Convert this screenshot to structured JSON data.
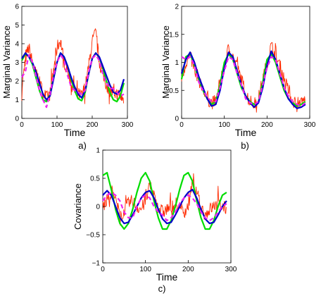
{
  "chart_data": [
    {
      "type": "line",
      "panel_label": "a)",
      "xlabel": "Time",
      "ylabel": "Marginal Variance",
      "xlim": [
        0,
        300
      ],
      "ylim": [
        0,
        6
      ],
      "xticks": [
        0,
        100,
        200,
        300
      ],
      "yticks": [
        0,
        1,
        2,
        3,
        4,
        5,
        6
      ],
      "xtick_labels": [
        "0",
        "100",
        "200",
        "300"
      ],
      "ytick_labels": [
        "0",
        "1",
        "2",
        "3",
        "4",
        "5",
        "6"
      ],
      "grid": false,
      "series": [
        {
          "color": "#ff2a00",
          "style": "noisy",
          "x": [
            0,
            10,
            20,
            30,
            40,
            50,
            60,
            70,
            80,
            90,
            100,
            110,
            120,
            130,
            140,
            150,
            160,
            170,
            180,
            190,
            200,
            210,
            220,
            230,
            240,
            250,
            260,
            270,
            280,
            290
          ],
          "y": [
            1.6,
            3.2,
            3.8,
            3.0,
            2.6,
            1.9,
            1.4,
            1.1,
            1.3,
            2.4,
            3.8,
            4.2,
            3.0,
            2.7,
            1.9,
            1.5,
            1.3,
            1.2,
            1.7,
            2.8,
            4.1,
            4.6,
            3.0,
            2.4,
            1.8,
            1.5,
            1.4,
            1.3,
            1.2,
            1.0
          ]
        },
        {
          "color": "#00dd00",
          "style": "smooth",
          "x": [
            0,
            10,
            20,
            30,
            40,
            50,
            60,
            70,
            80,
            90,
            100,
            110,
            120,
            130,
            140,
            150,
            160,
            170,
            180,
            190,
            200,
            210,
            220,
            230,
            240,
            250,
            260,
            270,
            280,
            290
          ],
          "y": [
            3.1,
            3.45,
            3.3,
            2.9,
            2.2,
            1.5,
            1.0,
            0.9,
            1.3,
            2.2,
            3.0,
            3.5,
            3.3,
            2.8,
            2.1,
            1.5,
            1.05,
            0.95,
            1.4,
            2.4,
            3.2,
            3.5,
            3.25,
            2.7,
            2.0,
            1.4,
            1.0,
            0.9,
            1.2,
            1.9
          ]
        },
        {
          "color": "#0000cc",
          "style": "smooth",
          "x": [
            0,
            10,
            20,
            30,
            40,
            50,
            60,
            70,
            80,
            90,
            100,
            110,
            120,
            130,
            140,
            150,
            160,
            170,
            180,
            190,
            200,
            210,
            220,
            230,
            240,
            250,
            260,
            270,
            280,
            290
          ],
          "y": [
            3.2,
            3.5,
            3.3,
            3.0,
            2.5,
            1.9,
            1.3,
            1.0,
            1.2,
            2.1,
            3.0,
            3.5,
            3.3,
            2.8,
            2.2,
            1.7,
            1.3,
            1.1,
            1.5,
            2.4,
            3.2,
            3.5,
            3.3,
            2.8,
            2.3,
            1.8,
            1.4,
            1.3,
            1.5,
            2.1
          ]
        },
        {
          "color": "#ee22ee",
          "style": "dashed",
          "x": [
            0,
            10,
            20,
            30,
            40,
            50,
            60,
            70,
            80,
            90,
            100,
            110,
            120,
            130,
            140,
            150,
            160,
            170,
            180,
            190,
            200,
            210,
            220,
            230,
            240,
            250,
            260,
            270,
            280,
            290
          ],
          "y": [
            2.2,
            2.5,
            3.4,
            3.0,
            2.3,
            1.5,
            1.0,
            0.6,
            1.3,
            2.3,
            3.0,
            3.4,
            3.1,
            2.3,
            1.7,
            1.5,
            1.4,
            1.3,
            1.5,
            2.5,
            3.2,
            3.4,
            3.1,
            2.4,
            1.9,
            1.6,
            1.6,
            1.4,
            1.2,
            1.3
          ]
        }
      ]
    },
    {
      "type": "line",
      "panel_label": "b)",
      "xlabel": "Time",
      "ylabel": "Marginal Variance",
      "xlim": [
        0,
        300
      ],
      "ylim": [
        0,
        2
      ],
      "xticks": [
        0,
        100,
        200,
        300
      ],
      "yticks": [
        0,
        0.5,
        1,
        1.5,
        2
      ],
      "xtick_labels": [
        "0",
        "100",
        "200",
        "300"
      ],
      "ytick_labels": [
        "0",
        "0.5",
        "1",
        "1.5",
        "2"
      ],
      "grid": false,
      "series": [
        {
          "color": "#ff2a00",
          "style": "noisy",
          "x": [
            0,
            10,
            20,
            30,
            40,
            50,
            60,
            70,
            80,
            90,
            100,
            110,
            120,
            130,
            140,
            150,
            160,
            170,
            180,
            190,
            200,
            210,
            220,
            230,
            240,
            250,
            260,
            270,
            280,
            290
          ],
          "y": [
            0.7,
            1.0,
            1.1,
            0.9,
            0.7,
            0.5,
            0.35,
            0.28,
            0.3,
            0.6,
            0.95,
            1.25,
            1.1,
            0.9,
            0.7,
            0.45,
            0.3,
            0.25,
            0.35,
            0.7,
            1.0,
            1.3,
            1.1,
            0.95,
            0.7,
            0.5,
            0.3,
            0.3,
            0.28,
            0.35
          ]
        },
        {
          "color": "#00dd00",
          "style": "smooth",
          "x": [
            0,
            10,
            20,
            30,
            40,
            50,
            60,
            70,
            80,
            90,
            100,
            110,
            120,
            130,
            140,
            150,
            160,
            170,
            180,
            190,
            200,
            210,
            220,
            230,
            240,
            250,
            260,
            270,
            280,
            290
          ],
          "y": [
            0.7,
            1.1,
            1.15,
            0.95,
            0.7,
            0.5,
            0.35,
            0.25,
            0.3,
            0.6,
            1.0,
            1.15,
            1.05,
            0.8,
            0.55,
            0.4,
            0.3,
            0.25,
            0.3,
            0.65,
            1.05,
            1.15,
            1.0,
            0.75,
            0.5,
            0.35,
            0.28,
            0.22,
            0.25,
            0.3
          ]
        },
        {
          "color": "#0000cc",
          "style": "smooth",
          "x": [
            0,
            10,
            20,
            30,
            40,
            50,
            60,
            70,
            80,
            90,
            100,
            110,
            120,
            130,
            140,
            150,
            160,
            170,
            180,
            190,
            200,
            210,
            220,
            230,
            240,
            250,
            260,
            270,
            280,
            290
          ],
          "y": [
            0.8,
            1.05,
            1.18,
            1.0,
            0.75,
            0.55,
            0.35,
            0.22,
            0.25,
            0.5,
            0.9,
            1.18,
            1.1,
            0.85,
            0.6,
            0.4,
            0.28,
            0.2,
            0.28,
            0.55,
            0.95,
            1.2,
            1.05,
            0.8,
            0.55,
            0.35,
            0.25,
            0.18,
            0.2,
            0.25
          ]
        },
        {
          "color": "#ee22ee",
          "style": "dashed",
          "x": [
            0,
            10,
            20,
            30,
            40,
            50,
            60,
            70,
            80,
            90,
            100,
            110,
            120,
            130,
            140,
            150,
            160,
            170,
            180,
            190,
            200,
            210,
            220,
            230,
            240,
            250,
            260,
            270,
            280,
            290
          ],
          "y": [
            1.1,
            1.05,
            1.1,
            0.95,
            0.65,
            0.5,
            0.38,
            0.3,
            0.3,
            0.55,
            0.85,
            1.1,
            1.05,
            0.8,
            0.6,
            0.35,
            0.28,
            0.25,
            0.3,
            0.6,
            0.9,
            1.1,
            1.05,
            0.8,
            0.55,
            0.4,
            0.3,
            0.25,
            0.22,
            0.28
          ]
        }
      ]
    },
    {
      "type": "line",
      "panel_label": "c)",
      "xlabel": "Time",
      "ylabel": "Covariance",
      "xlim": [
        0,
        300
      ],
      "ylim": [
        -1,
        1
      ],
      "xticks": [
        0,
        100,
        200,
        300
      ],
      "yticks": [
        -1,
        -0.5,
        0,
        0.5,
        1
      ],
      "xtick_labels": [
        "0",
        "100",
        "200",
        "300"
      ],
      "ytick_labels": [
        "−1",
        "−0.5",
        "0",
        "0.5",
        "1"
      ],
      "grid": false,
      "series": [
        {
          "color": "#ff2a00",
          "style": "noisy",
          "x": [
            0,
            10,
            20,
            30,
            40,
            50,
            60,
            70,
            80,
            90,
            100,
            110,
            120,
            130,
            140,
            150,
            160,
            170,
            180,
            190,
            200,
            210,
            220,
            230,
            240,
            250,
            260,
            270,
            280,
            290
          ],
          "y": [
            0.0,
            0.1,
            0.3,
            0.1,
            -0.15,
            -0.1,
            0.05,
            0.1,
            0.0,
            -0.05,
            0.1,
            0.35,
            0.2,
            0.0,
            -0.1,
            -0.05,
            0.0,
            0.05,
            0.0,
            -0.1,
            0.0,
            0.4,
            0.2,
            0.0,
            -0.15,
            -0.05,
            0.0,
            0.05,
            0.0,
            -0.05
          ]
        },
        {
          "color": "#00dd00",
          "style": "smooth",
          "x": [
            0,
            10,
            20,
            30,
            40,
            50,
            60,
            70,
            80,
            90,
            100,
            110,
            120,
            130,
            140,
            150,
            160,
            170,
            180,
            190,
            200,
            210,
            220,
            230,
            240,
            250,
            260,
            270,
            280,
            290
          ],
          "y": [
            0.55,
            0.6,
            0.3,
            -0.05,
            -0.3,
            -0.4,
            -0.3,
            -0.05,
            0.25,
            0.5,
            0.6,
            0.45,
            0.1,
            -0.2,
            -0.4,
            -0.4,
            -0.25,
            0.0,
            0.3,
            0.55,
            0.6,
            0.45,
            0.1,
            -0.2,
            -0.4,
            -0.4,
            -0.25,
            0.0,
            0.2,
            0.25
          ]
        },
        {
          "color": "#0000cc",
          "style": "smooth",
          "x": [
            0,
            10,
            20,
            30,
            40,
            50,
            60,
            70,
            80,
            90,
            100,
            110,
            120,
            130,
            140,
            150,
            160,
            170,
            180,
            190,
            200,
            210,
            220,
            230,
            240,
            250,
            260,
            270,
            280,
            290
          ],
          "y": [
            0.2,
            0.28,
            0.2,
            0.0,
            -0.2,
            -0.3,
            -0.28,
            -0.15,
            0.0,
            0.15,
            0.25,
            0.28,
            0.15,
            -0.05,
            -0.22,
            -0.3,
            -0.28,
            -0.15,
            0.0,
            0.15,
            0.25,
            0.3,
            0.15,
            -0.05,
            -0.22,
            -0.3,
            -0.28,
            -0.15,
            0.0,
            0.1
          ]
        },
        {
          "color": "#ee22ee",
          "style": "dashed",
          "x": [
            0,
            10,
            20,
            30,
            40,
            50,
            60,
            70,
            80,
            90,
            100,
            110,
            120,
            130,
            140,
            150,
            160,
            170,
            180,
            190,
            200,
            210,
            220,
            230,
            240,
            250,
            260,
            270,
            280,
            290
          ],
          "y": [
            0.1,
            0.2,
            0.25,
            0.2,
            0.1,
            -0.1,
            -0.2,
            -0.2,
            0.0,
            0.15,
            0.2,
            0.15,
            0.0,
            -0.1,
            -0.15,
            -0.25,
            -0.2,
            -0.1,
            0.05,
            0.15,
            0.2,
            0.15,
            0.05,
            -0.1,
            -0.2,
            -0.25,
            -0.2,
            -0.1,
            0.0,
            0.05
          ]
        }
      ]
    }
  ]
}
